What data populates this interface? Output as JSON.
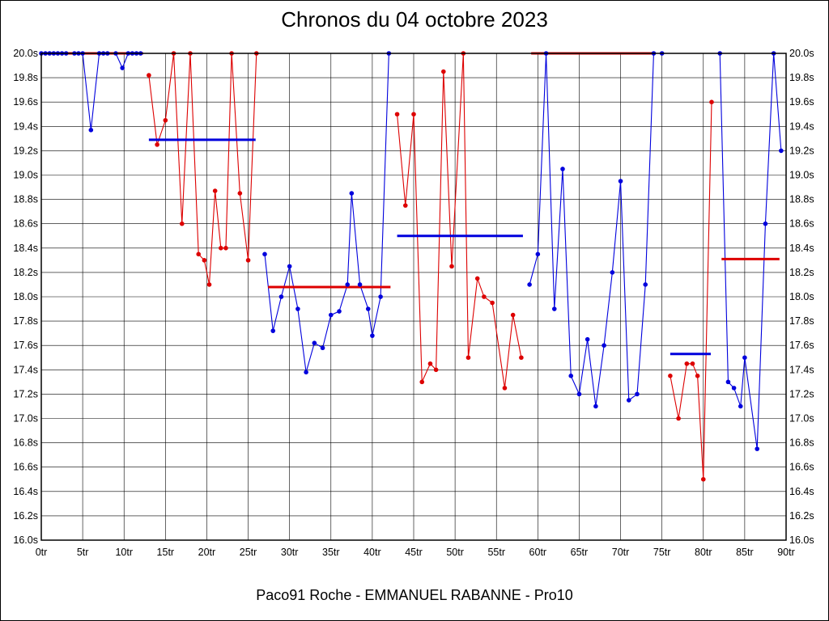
{
  "page": {
    "title": "Chronos du 04 octobre 2023",
    "footer": "Paco91 Roche - EMMANUEL RABANNE - Pro10"
  },
  "chart_data": {
    "type": "line",
    "title": "Chronos du 04 octobre 2023",
    "xlabel": "",
    "ylabel": "",
    "x_unit": "tr",
    "y_unit": "s",
    "xlim": [
      0,
      90
    ],
    "ylim": [
      16.0,
      20.0
    ],
    "grid": true,
    "legend": "none",
    "colors": {
      "blue": "#0000dd",
      "red": "#dd0000",
      "grid": "#000000",
      "text": "#000000"
    },
    "x_ticks": [
      [
        0,
        "0tr"
      ],
      [
        5,
        "5tr"
      ],
      [
        10,
        "10tr"
      ],
      [
        15,
        "15tr"
      ],
      [
        20,
        "20tr"
      ],
      [
        25,
        "25tr"
      ],
      [
        30,
        "30tr"
      ],
      [
        35,
        "35tr"
      ],
      [
        40,
        "40tr"
      ],
      [
        45,
        "45tr"
      ],
      [
        50,
        "50tr"
      ],
      [
        55,
        "55tr"
      ],
      [
        60,
        "60tr"
      ],
      [
        65,
        "65tr"
      ],
      [
        70,
        "70tr"
      ],
      [
        75,
        "75tr"
      ],
      [
        80,
        "80tr"
      ],
      [
        85,
        "85tr"
      ],
      [
        90,
        "90tr"
      ]
    ],
    "y_ticks": [
      [
        20,
        "20.0s"
      ],
      [
        19.8,
        "19.8s"
      ],
      [
        19.6,
        "19.6s"
      ],
      [
        19.4,
        "19.4s"
      ],
      [
        19.2,
        "19.2s"
      ],
      [
        19,
        "19.0s"
      ],
      [
        18.8,
        "18.8s"
      ],
      [
        18.6,
        "18.6s"
      ],
      [
        18.4,
        "18.4s"
      ],
      [
        18.2,
        "18.2s"
      ],
      [
        18,
        "18.0s"
      ],
      [
        17.8,
        "17.8s"
      ],
      [
        17.6,
        "17.6s"
      ],
      [
        17.4,
        "17.4s"
      ],
      [
        17.2,
        "17.2s"
      ],
      [
        17,
        "17.0s"
      ],
      [
        16.8,
        "16.8s"
      ],
      [
        16.6,
        "16.6s"
      ],
      [
        16.4,
        "16.4s"
      ],
      [
        16.2,
        "16.2s"
      ],
      [
        16,
        "16.0s"
      ]
    ],
    "series": [
      {
        "name": "chrono-blue",
        "color": "blue",
        "runs": [
          [
            [
              0,
              20
            ],
            [
              0.5,
              20
            ],
            [
              1,
              20
            ],
            [
              1.5,
              20
            ],
            [
              2,
              20
            ],
            [
              2.5,
              20
            ],
            [
              3,
              20
            ],
            [
              4,
              20
            ],
            [
              4.5,
              20
            ],
            [
              5,
              20
            ],
            [
              6,
              19.37
            ],
            [
              7,
              20
            ],
            [
              7.5,
              20
            ],
            [
              8,
              20
            ],
            [
              9,
              20
            ],
            [
              9.8,
              19.88
            ],
            [
              10.5,
              20
            ],
            [
              11,
              20
            ],
            [
              11.5,
              20
            ],
            [
              12,
              20
            ]
          ],
          [
            [
              27,
              18.35
            ],
            [
              28,
              17.72
            ],
            [
              29,
              18.0
            ],
            [
              30,
              18.25
            ],
            [
              31,
              17.9
            ],
            [
              32,
              17.38
            ],
            [
              33,
              17.62
            ],
            [
              34,
              17.58
            ],
            [
              35,
              17.85
            ],
            [
              36,
              17.88
            ],
            [
              37,
              18.1
            ],
            [
              37.5,
              18.85
            ],
            [
              38.5,
              18.1
            ],
            [
              39.5,
              17.9
            ],
            [
              40,
              17.68
            ],
            [
              41,
              18.0
            ],
            [
              42,
              20.0
            ]
          ],
          [
            [
              59,
              18.1
            ],
            [
              60,
              18.35
            ],
            [
              61,
              20.0
            ],
            [
              62,
              17.9
            ],
            [
              63,
              19.05
            ],
            [
              64,
              17.35
            ],
            [
              65,
              17.2
            ],
            [
              66,
              17.65
            ],
            [
              67,
              17.1
            ],
            [
              68,
              17.6
            ],
            [
              69,
              18.2
            ],
            [
              70,
              18.95
            ],
            [
              71,
              17.15
            ],
            [
              72,
              17.2
            ],
            [
              73,
              18.1
            ],
            [
              74,
              20.0
            ],
            [
              75,
              20.0
            ]
          ],
          [
            [
              82,
              20.0
            ],
            [
              83,
              17.3
            ],
            [
              83.7,
              17.25
            ],
            [
              84.5,
              17.1
            ],
            [
              85,
              17.5
            ],
            [
              86.5,
              16.75
            ],
            [
              87.5,
              18.6
            ],
            [
              88.5,
              20.0
            ],
            [
              89.4,
              19.2
            ]
          ]
        ]
      },
      {
        "name": "chrono-red",
        "color": "red",
        "runs": [
          [
            [
              13,
              19.82
            ],
            [
              14,
              19.25
            ],
            [
              15,
              19.45
            ],
            [
              16,
              20.0
            ],
            [
              17,
              18.6
            ],
            [
              18,
              20.0
            ],
            [
              19,
              18.35
            ],
            [
              19.7,
              18.3
            ],
            [
              20.3,
              18.1
            ],
            [
              21,
              18.87
            ],
            [
              21.7,
              18.4
            ],
            [
              22.3,
              18.4
            ],
            [
              23,
              20.0
            ],
            [
              24,
              18.85
            ],
            [
              25,
              18.3
            ],
            [
              26,
              20.0
            ]
          ],
          [
            [
              43,
              19.5
            ],
            [
              44,
              18.75
            ],
            [
              45,
              19.5
            ],
            [
              46,
              17.3
            ],
            [
              47,
              17.45
            ],
            [
              47.7,
              17.4
            ],
            [
              48.6,
              19.85
            ],
            [
              49.6,
              18.25
            ],
            [
              51,
              20.0
            ],
            [
              51.6,
              17.5
            ],
            [
              52.7,
              18.15
            ],
            [
              53.5,
              18.0
            ],
            [
              54.5,
              17.95
            ],
            [
              56,
              17.25
            ],
            [
              57,
              17.85
            ],
            [
              58,
              17.5
            ]
          ],
          [
            [
              76,
              17.35
            ],
            [
              77,
              17.0
            ],
            [
              78,
              17.45
            ],
            [
              78.7,
              17.45
            ],
            [
              79.3,
              17.35
            ],
            [
              80,
              16.5
            ],
            [
              81,
              19.6
            ]
          ]
        ]
      }
    ],
    "mean_segments": [
      {
        "color": "red",
        "x1": 0,
        "x2": 12.3,
        "y": 20.0
      },
      {
        "color": "blue",
        "x1": 13,
        "x2": 25.9,
        "y": 19.29
      },
      {
        "color": "red",
        "x1": 27.4,
        "x2": 42.2,
        "y": 18.08
      },
      {
        "color": "blue",
        "x1": 43,
        "x2": 58.2,
        "y": 18.5
      },
      {
        "color": "red",
        "x1": 59.2,
        "x2": 74.2,
        "y": 20.0
      },
      {
        "color": "blue",
        "x1": 76,
        "x2": 80.9,
        "y": 17.53
      },
      {
        "color": "red",
        "x1": 82.2,
        "x2": 89.2,
        "y": 18.31
      }
    ]
  }
}
